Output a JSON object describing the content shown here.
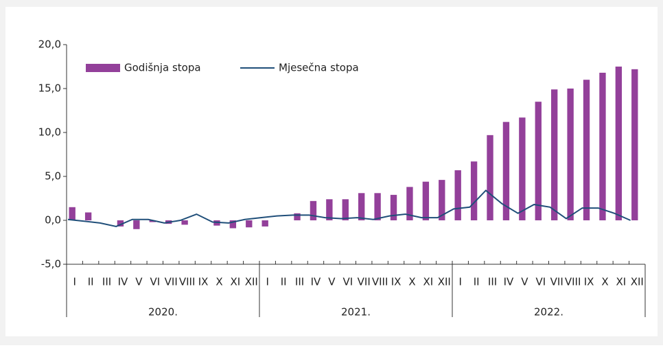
{
  "chart_data": {
    "type": "bar",
    "categories": [
      "I",
      "II",
      "III",
      "IV",
      "V",
      "VI",
      "VII",
      "VIII",
      "IX",
      "X",
      "XI",
      "XII",
      "I",
      "II",
      "III",
      "IV",
      "V",
      "VI",
      "VII",
      "VIII",
      "IX",
      "X",
      "XI",
      "XII",
      "I",
      "II",
      "III",
      "IV",
      "V",
      "VI",
      "VII",
      "VIII",
      "IX",
      "X",
      "XI",
      "XII"
    ],
    "year_groups": [
      "2020.",
      "2021.",
      "2022."
    ],
    "series": [
      {
        "name": "Godišnja stopa",
        "type": "bar",
        "color": "#93409a",
        "values": [
          1.5,
          0.9,
          0,
          -0.7,
          -1.0,
          -0.2,
          -0.4,
          -0.5,
          0,
          -0.6,
          -0.9,
          -0.8,
          -0.7,
          0,
          0.8,
          2.2,
          2.4,
          2.4,
          3.1,
          3.1,
          2.9,
          3.8,
          4.4,
          4.6,
          5.7,
          6.7,
          9.7,
          11.2,
          11.7,
          13.5,
          14.9,
          15.0,
          16.0,
          16.8,
          17.5,
          17.2
        ]
      },
      {
        "name": "Mjesečna stopa",
        "type": "line",
        "color": "#1f4e79",
        "values": [
          0.1,
          -0.1,
          -0.3,
          -0.7,
          0.1,
          0.1,
          -0.3,
          0.0,
          0.7,
          -0.2,
          -0.3,
          0.1,
          0.3,
          0.5,
          0.6,
          0.6,
          0.3,
          0.2,
          0.3,
          0.1,
          0.5,
          0.7,
          0.3,
          0.3,
          1.3,
          1.5,
          3.4,
          1.9,
          0.8,
          1.8,
          1.5,
          0.2,
          1.4,
          1.4,
          0.8,
          0.0
        ]
      }
    ],
    "ylim": [
      -5,
      20
    ],
    "yticks": [
      {
        "value": -5,
        "label": "-5,0"
      },
      {
        "value": 0,
        "label": "0,0"
      },
      {
        "value": 5,
        "label": "5,0"
      },
      {
        "value": 10,
        "label": "10,0"
      },
      {
        "value": 15,
        "label": "15,0"
      },
      {
        "value": 20,
        "label": "20,0"
      }
    ],
    "legend": "top-left",
    "grid": false
  }
}
